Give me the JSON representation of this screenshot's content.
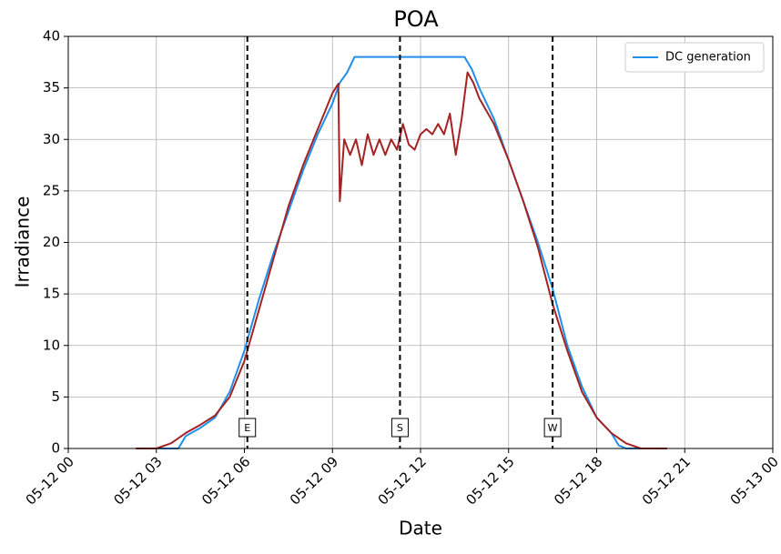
{
  "chart_data": {
    "type": "line",
    "title": "POA",
    "x_label": "Date",
    "y_label": "Irradiance",
    "xlim": [
      0,
      24
    ],
    "xticks": [
      {
        "value": 0,
        "label": "05-12 00"
      },
      {
        "value": 3,
        "label": "05-12 03"
      },
      {
        "value": 6,
        "label": "05-12 06"
      },
      {
        "value": 9,
        "label": "05-12 09"
      },
      {
        "value": 12,
        "label": "05-12 12"
      },
      {
        "value": 15,
        "label": "05-12 15"
      },
      {
        "value": 18,
        "label": "05-12 18"
      },
      {
        "value": 21,
        "label": "05-12 21"
      },
      {
        "value": 24,
        "label": "05-13 00"
      }
    ],
    "ylim": [
      0,
      40
    ],
    "yticks": [
      0,
      5,
      10,
      15,
      20,
      25,
      30,
      35,
      40
    ],
    "grid": true,
    "legend": "upper right",
    "series": [
      {
        "name": "DC generation",
        "color": "#1f8fea",
        "x": [
          3.0,
          3.75,
          4.0,
          4.5,
          5.0,
          5.5,
          6.0,
          6.5,
          7.0,
          7.5,
          8.0,
          8.5,
          9.0,
          9.25,
          9.5,
          9.75,
          10,
          11,
          12,
          13,
          13.5,
          13.75,
          14.0,
          14.5,
          15,
          15.5,
          16.0,
          16.5,
          17.0,
          17.5,
          18.0,
          18.5,
          18.75,
          19,
          19.5
        ],
        "values": [
          0,
          0,
          1.2,
          2.0,
          3.0,
          5.5,
          9.5,
          14.5,
          19,
          23,
          27,
          30.5,
          33.5,
          35.5,
          36.5,
          38,
          38,
          38,
          38,
          38,
          38,
          36.8,
          35,
          32,
          28,
          24,
          20,
          15.5,
          10,
          6,
          3,
          1.5,
          0.3,
          0,
          0
        ]
      },
      {
        "color": "#a52222",
        "x": [
          2.3,
          3.0,
          3.5,
          4.0,
          4.5,
          5.0,
          5.5,
          6.0,
          6.5,
          7.0,
          7.5,
          8.0,
          8.5,
          9.0,
          9.2,
          9.25,
          9.4,
          9.6,
          9.8,
          10,
          10.2,
          10.4,
          10.6,
          10.8,
          11.0,
          11.2,
          11.4,
          11.6,
          11.8,
          12.0,
          12.2,
          12.4,
          12.6,
          12.8,
          13.0,
          13.2,
          13.4,
          13.6,
          13.8,
          14.0,
          14.5,
          15,
          15.5,
          16,
          16.5,
          17,
          17.5,
          18,
          18.5,
          19,
          19.5,
          20.4
        ],
        "values": [
          0,
          0,
          0.5,
          1.5,
          2.3,
          3.2,
          5.0,
          8.5,
          13.5,
          18.5,
          23.5,
          27.5,
          31,
          34.5,
          35.4,
          24,
          30,
          28.5,
          30,
          27.5,
          30.5,
          28.5,
          30,
          28.5,
          30,
          29,
          31.5,
          29.5,
          29,
          30.5,
          31,
          30.5,
          31.5,
          30.5,
          32.5,
          28.5,
          32,
          36.5,
          35.5,
          34,
          31.5,
          28,
          24,
          19.5,
          14,
          9.5,
          5.5,
          3,
          1.5,
          0.5,
          0,
          0
        ]
      }
    ],
    "vlines": [
      {
        "x": 6.1,
        "label": "E"
      },
      {
        "x": 11.3,
        "label": "S"
      },
      {
        "x": 16.5,
        "label": "W"
      }
    ]
  }
}
